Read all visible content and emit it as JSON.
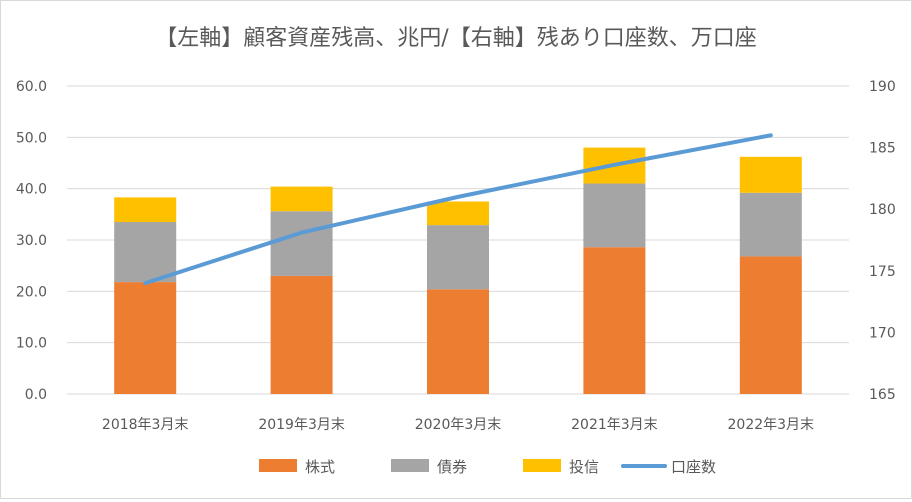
{
  "chart_data": {
    "type": "bar",
    "stacked": true,
    "title": "【左軸】顧客資産残高、兆円/【右軸】残あり口座数、万口座",
    "categories": [
      "2018年3月末",
      "2019年3月末",
      "2020年3月末",
      "2021年3月末",
      "2022年3月末"
    ],
    "series": [
      {
        "name": "株式",
        "type": "bar",
        "axis": "left",
        "color": "#ED7D31",
        "values": [
          21.8,
          23.0,
          20.4,
          28.6,
          26.8
        ]
      },
      {
        "name": "債券",
        "type": "bar",
        "axis": "left",
        "color": "#A5A5A5",
        "values": [
          11.7,
          12.6,
          12.5,
          12.4,
          12.4
        ]
      },
      {
        "name": "投信",
        "type": "bar",
        "axis": "left",
        "color": "#FFC000",
        "values": [
          4.8,
          4.8,
          4.6,
          7.0,
          7.0
        ]
      },
      {
        "name": "口座数",
        "type": "line",
        "axis": "right",
        "color": "#5B9BD5",
        "values": [
          174.0,
          178.1,
          181.0,
          183.6,
          186.0
        ]
      }
    ],
    "y_left": {
      "min": 0,
      "max": 60,
      "step": 10,
      "ticks": [
        "0.0",
        "10.0",
        "20.0",
        "30.0",
        "40.0",
        "50.0",
        "60.0"
      ]
    },
    "y_right": {
      "min": 165,
      "max": 190,
      "step": 5,
      "ticks": [
        "165",
        "170",
        "175",
        "180",
        "185",
        "190"
      ]
    },
    "grid": true,
    "legend_position": "bottom"
  }
}
